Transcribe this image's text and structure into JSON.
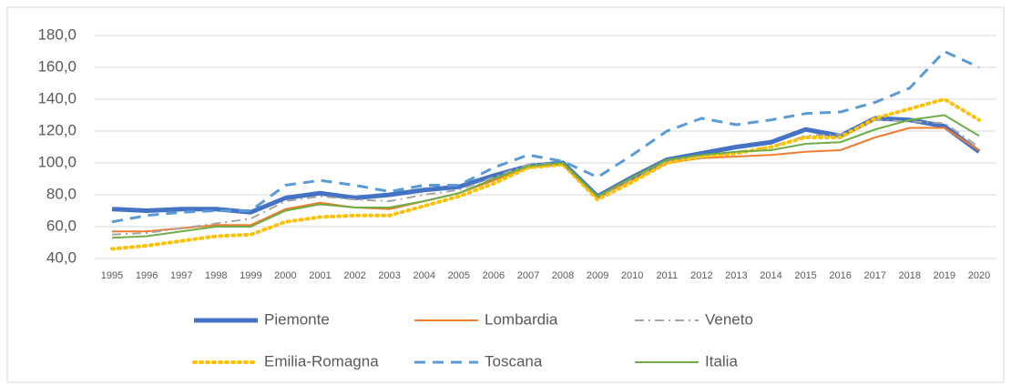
{
  "chart_data": {
    "type": "line",
    "x": [
      "1995",
      "1996",
      "1997",
      "1998",
      "1999",
      "2000",
      "2001",
      "2002",
      "2003",
      "2004",
      "2005",
      "2006",
      "2007",
      "2008",
      "2009",
      "2010",
      "2011",
      "2012",
      "2013",
      "2014",
      "2015",
      "2016",
      "2017",
      "2018",
      "2019",
      "2020"
    ],
    "ylim": [
      40,
      180
    ],
    "yticks": [
      {
        "value": 40,
        "label": "40,0"
      },
      {
        "value": 60,
        "label": "60,0"
      },
      {
        "value": 80,
        "label": "80,0"
      },
      {
        "value": 100,
        "label": "100,0"
      },
      {
        "value": 120,
        "label": "120,0"
      },
      {
        "value": 140,
        "label": "140,0"
      },
      {
        "value": 160,
        "label": "160,0"
      },
      {
        "value": 180,
        "label": "180,0"
      }
    ],
    "grid": true,
    "legend": "bottom",
    "series": [
      {
        "name": "Piemonte",
        "color": "#4472c4",
        "style": "solid",
        "width": 5,
        "values": [
          71,
          70,
          71,
          71,
          69,
          78,
          81,
          78,
          80,
          83,
          85,
          92,
          98,
          100,
          79,
          91,
          102,
          106,
          110,
          113,
          121,
          117,
          128,
          127,
          123,
          107
        ]
      },
      {
        "name": "Lombardia",
        "color": "#ed7d31",
        "style": "solid",
        "width": 2,
        "values": [
          57,
          57,
          59,
          61,
          61,
          71,
          75,
          72,
          71,
          76,
          81,
          89,
          97,
          100,
          79,
          89,
          100,
          103,
          104,
          105,
          107,
          108,
          116,
          122,
          122,
          108
        ]
      },
      {
        "name": "Veneto",
        "color": "#a5a5a5",
        "style": "dashdot",
        "width": 2,
        "values": [
          55,
          56,
          59,
          62,
          65,
          76,
          79,
          77,
          76,
          80,
          83,
          91,
          99,
          100,
          78,
          90,
          101,
          103,
          107,
          110,
          117,
          118,
          127,
          126,
          125,
          110
        ]
      },
      {
        "name": "Emilia-Romagna",
        "color": "#ffc000",
        "style": "dotted",
        "width": 4,
        "values": [
          46,
          48,
          51,
          54,
          55,
          63,
          66,
          67,
          67,
          73,
          79,
          87,
          97,
          99,
          77,
          88,
          100,
          104,
          106,
          110,
          116,
          116,
          128,
          134,
          140,
          127
        ]
      },
      {
        "name": "Toscana",
        "color": "#5b9bd5",
        "style": "dashed",
        "width": 3,
        "values": [
          63,
          67,
          69,
          70,
          70,
          86,
          89,
          86,
          82,
          86,
          86,
          97,
          105,
          101,
          91,
          105,
          120,
          128,
          124,
          127,
          131,
          132,
          138,
          147,
          170,
          160
        ]
      },
      {
        "name": "Italia",
        "color": "#70ad47",
        "style": "solid",
        "width": 2,
        "values": [
          53,
          54,
          57,
          60,
          60,
          70,
          74,
          72,
          72,
          76,
          81,
          90,
          98,
          100,
          79,
          91,
          102,
          105,
          107,
          108,
          112,
          113,
          121,
          127,
          130,
          117
        ]
      }
    ]
  }
}
